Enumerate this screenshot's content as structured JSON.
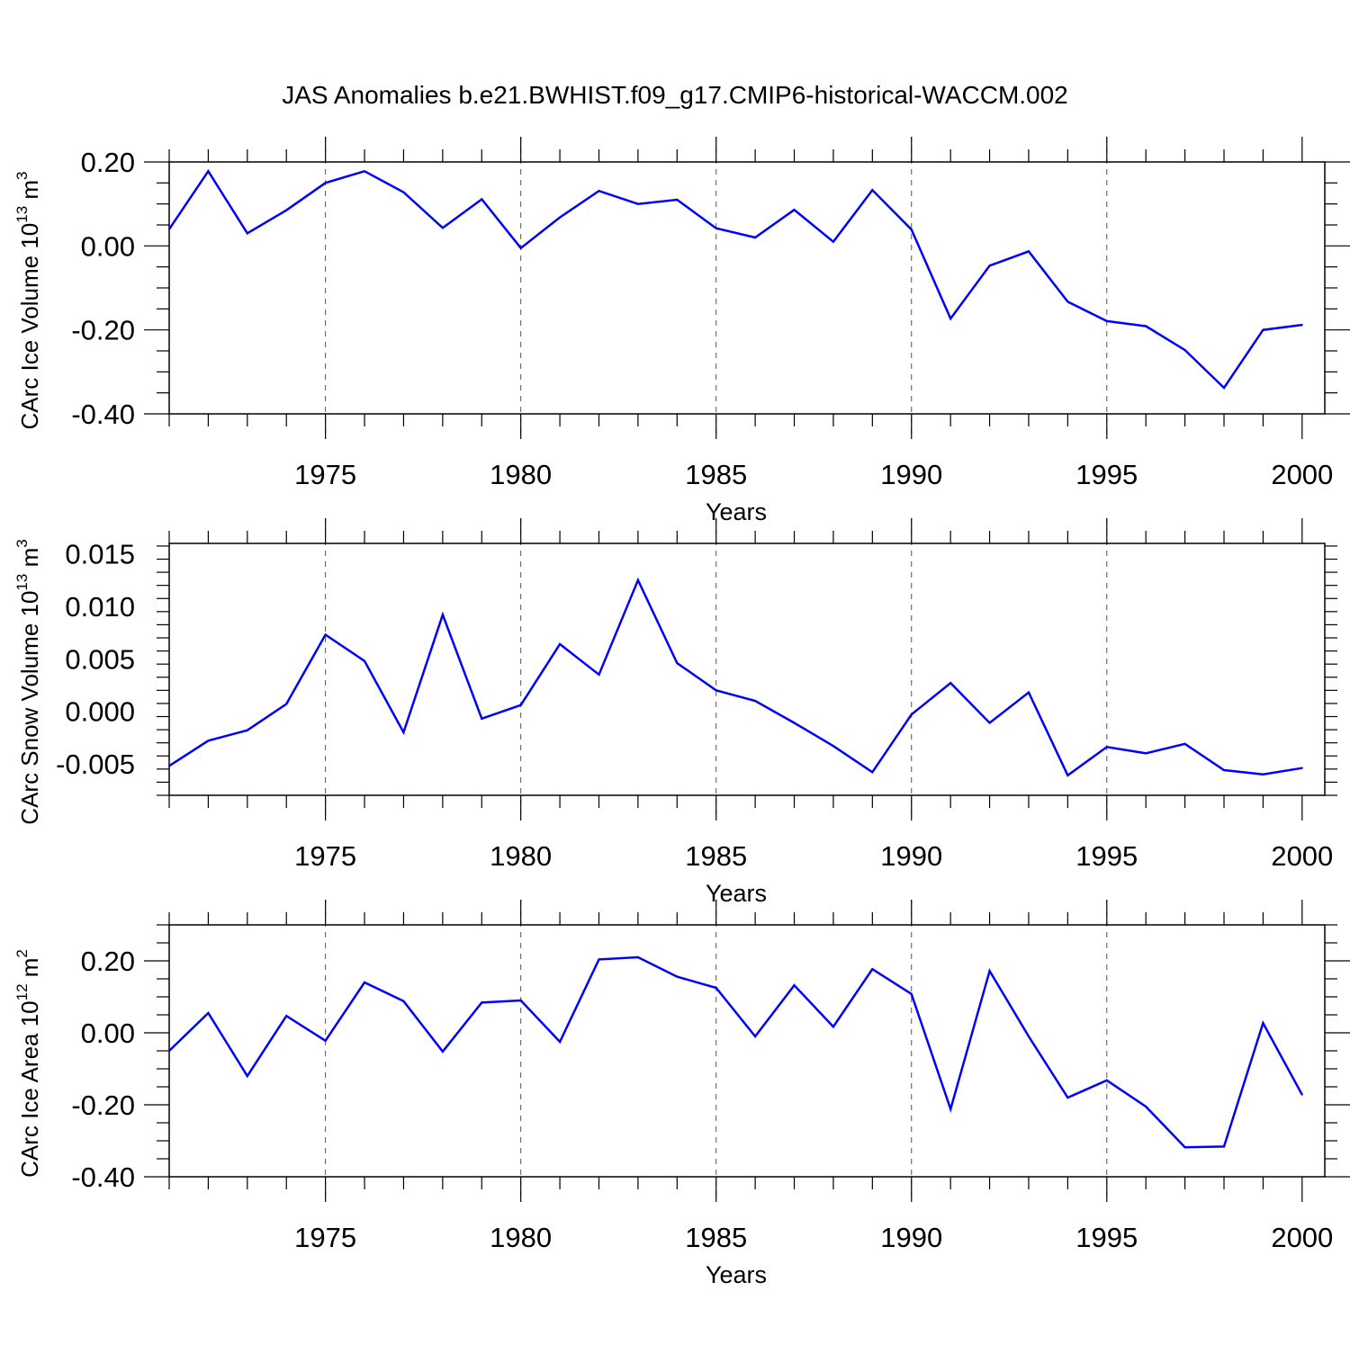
{
  "title": "JAS Anomalies b.e21.BWHIST.f09_g17.CMIP6-historical-WACCM.002",
  "chart_data": [
    {
      "type": "line",
      "title": "",
      "xlabel": "Years",
      "ylabel": {
        "text": "CArc Ice Volume 10",
        "sup1": "13",
        "mid": " m",
        "sup2": "3"
      },
      "xlim": [
        1971,
        2000
      ],
      "ylim": [
        -0.4,
        0.2
      ],
      "grid": "vertical dashed",
      "xticks": [
        1975,
        1980,
        1985,
        1990,
        1995,
        2000
      ],
      "xtick_labels": [
        "1975",
        "1980",
        "1985",
        "1990",
        "1995",
        "2000"
      ],
      "yticks": [
        -0.4,
        -0.2,
        0.0,
        0.2
      ],
      "ytick_labels": [
        "-0.40",
        "-0.20",
        "0.00",
        "0.20"
      ],
      "series": [
        {
          "name": "CArc Ice Volume",
          "color": "#0000ff",
          "x": [
            1971,
            1972,
            1973,
            1974,
            1975,
            1976,
            1977,
            1978,
            1979,
            1980,
            1981,
            1982,
            1983,
            1984,
            1985,
            1986,
            1987,
            1988,
            1989,
            1990,
            1991,
            1992,
            1993,
            1994,
            1995,
            1996,
            1997,
            1998,
            1999,
            2000
          ],
          "values": [
            0.04,
            0.178,
            0.03,
            0.085,
            0.15,
            0.178,
            0.128,
            0.043,
            0.111,
            -0.005,
            0.068,
            0.131,
            0.1,
            0.11,
            0.042,
            0.02,
            0.086,
            0.01,
            0.133,
            0.039,
            -0.173,
            -0.047,
            -0.013,
            -0.133,
            -0.179,
            -0.191,
            -0.248,
            -0.338,
            -0.2,
            -0.188
          ]
        }
      ]
    },
    {
      "type": "line",
      "title": "",
      "xlabel": "Years",
      "ylabel": {
        "text": "CArc Snow Volume 10",
        "sup1": "13",
        "mid": " m",
        "sup2": "3"
      },
      "xlim": [
        1971,
        2000
      ],
      "ylim": [
        -0.008,
        0.016
      ],
      "grid": "vertical dashed",
      "xticks": [
        1975,
        1980,
        1985,
        1990,
        1995,
        2000
      ],
      "xtick_labels": [
        "1975",
        "1980",
        "1985",
        "1990",
        "1995",
        "2000"
      ],
      "yticks": [
        -0.005,
        0.0,
        0.005,
        0.01,
        0.015
      ],
      "ytick_labels": [
        "-0.005",
        "0.000",
        "0.005",
        "0.010",
        "0.015"
      ],
      "series": [
        {
          "name": "CArc Snow Volume",
          "color": "#0000ff",
          "x": [
            1971,
            1972,
            1973,
            1974,
            1975,
            1976,
            1977,
            1978,
            1979,
            1980,
            1981,
            1982,
            1983,
            1984,
            1985,
            1986,
            1987,
            1988,
            1989,
            1990,
            1991,
            1992,
            1993,
            1994,
            1995,
            1996,
            1997,
            1998,
            1999,
            2000
          ],
          "values": [
            -0.0052,
            -0.0028,
            -0.0018,
            0.0007,
            0.0073,
            0.0048,
            -0.002,
            0.0092,
            -0.0007,
            0.0006,
            0.0064,
            0.0035,
            0.0125,
            0.0046,
            0.002,
            0.001,
            -0.0011,
            -0.0033,
            -0.0058,
            -0.0003,
            0.0027,
            -0.0011,
            0.0018,
            -0.0061,
            -0.0034,
            -0.004,
            -0.0031,
            -0.0056,
            -0.006,
            -0.0054
          ]
        }
      ]
    },
    {
      "type": "line",
      "title": "",
      "xlabel": "Years",
      "ylabel": {
        "text": "CArc Ice Area 10",
        "sup1": "12",
        "mid": " m",
        "sup2": "2"
      },
      "xlim": [
        1971,
        2000
      ],
      "ylim": [
        -0.4,
        0.3
      ],
      "grid": "vertical dashed",
      "xticks": [
        1975,
        1980,
        1985,
        1990,
        1995,
        2000
      ],
      "xtick_labels": [
        "1975",
        "1980",
        "1985",
        "1990",
        "1995",
        "2000"
      ],
      "yticks": [
        -0.4,
        -0.2,
        0.0,
        0.2
      ],
      "ytick_labels": [
        "-0.40",
        "-0.20",
        "0.00",
        "0.20"
      ],
      "series": [
        {
          "name": "CArc Ice Area",
          "color": "#0000ff",
          "x": [
            1971,
            1972,
            1973,
            1974,
            1975,
            1976,
            1977,
            1978,
            1979,
            1980,
            1981,
            1982,
            1983,
            1984,
            1985,
            1986,
            1987,
            1988,
            1989,
            1990,
            1991,
            1992,
            1993,
            1994,
            1995,
            1996,
            1997,
            1998,
            1999,
            2000
          ],
          "values": [
            -0.05,
            0.055,
            -0.12,
            0.047,
            -0.022,
            0.14,
            0.088,
            -0.052,
            0.084,
            0.09,
            -0.025,
            0.204,
            0.21,
            0.156,
            0.125,
            -0.01,
            0.132,
            0.017,
            0.177,
            0.108,
            -0.212,
            0.172,
            -0.01,
            -0.18,
            -0.132,
            -0.205,
            -0.318,
            -0.316,
            0.027,
            -0.172
          ]
        }
      ]
    }
  ]
}
